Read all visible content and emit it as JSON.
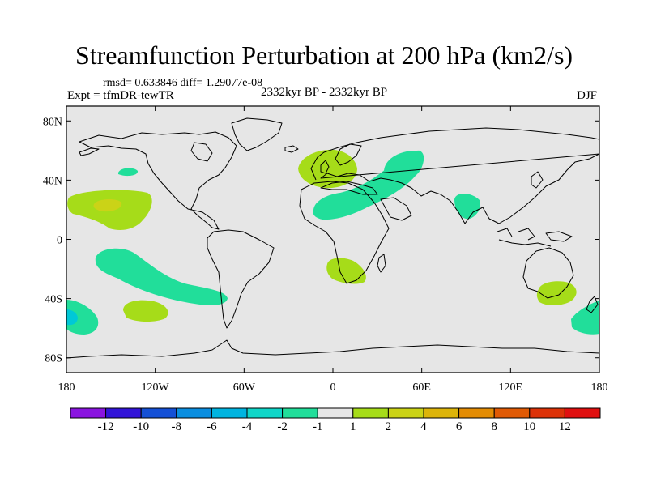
{
  "title": "Streamfunction Perturbation at 200 hPa (km2/s)",
  "stats_text": "rmsd= 0.633846 diff= 1.29077e-08",
  "experiment": "Expt = tfmDR-tewTR",
  "period": "2332kyr BP - 2332kyr BP",
  "season": "DJF",
  "map": {
    "lat_ticks": [
      "80N",
      "40N",
      "0",
      "40S",
      "80S"
    ],
    "lon_ticks": [
      "180",
      "120W",
      "60W",
      "0",
      "60E",
      "120E",
      "180"
    ],
    "ocean_color": "#e6e6e6",
    "coast_color": "#000000"
  },
  "anomaly_regions": [
    {
      "name": "north-pacific-small",
      "color_class": "-2..-1",
      "color": "#21de9a"
    },
    {
      "name": "subtropical-north-pacific",
      "color_class": "1..2",
      "color": "#a6dc19"
    },
    {
      "name": "subtropical-north-pacific-core",
      "color_class": "2..4",
      "color": "#cbd317"
    },
    {
      "name": "south-pacific-band",
      "color_class": "-2..-1",
      "color": "#21de9a"
    },
    {
      "name": "south-pacific-lobe",
      "color_class": "1..2",
      "color": "#a6dc19"
    },
    {
      "name": "far-southwest-pacific-left",
      "color_class": "-2..-1",
      "color": "#21de9a"
    },
    {
      "name": "far-southwest-pacific-core",
      "color_class": "-4..-2",
      "color": "#00c8d7"
    },
    {
      "name": "europe-atlantic",
      "color_class": "1..2",
      "color": "#a6dc19"
    },
    {
      "name": "africa-asia-band",
      "color_class": "-2..-1",
      "color": "#21de9a"
    },
    {
      "name": "central-asia",
      "color_class": "-2..-1",
      "color": "#21de9a"
    },
    {
      "name": "india",
      "color_class": "-2..-1",
      "color": "#21de9a"
    },
    {
      "name": "southern-africa",
      "color_class": "1..2",
      "color": "#a6dc19"
    },
    {
      "name": "australia",
      "color_class": "1..2",
      "color": "#a6dc19"
    },
    {
      "name": "new-zealand-east",
      "color_class": "-2..-1",
      "color": "#21de9a"
    }
  ],
  "colorbar": {
    "colors": [
      "#8a14e0",
      "#3214d8",
      "#1450d6",
      "#0a8ee0",
      "#00b4e0",
      "#10d6c8",
      "#21de9a",
      "#e6e6e6",
      "#a6dc19",
      "#cbd317",
      "#dcb40a",
      "#e38c04",
      "#e05a05",
      "#dc3208",
      "#e01010"
    ],
    "labels": [
      "-12",
      "-10",
      "-8",
      "-6",
      "-4",
      "-2",
      "-1",
      "1",
      "2",
      "4",
      "6",
      "8",
      "10",
      "12"
    ]
  }
}
